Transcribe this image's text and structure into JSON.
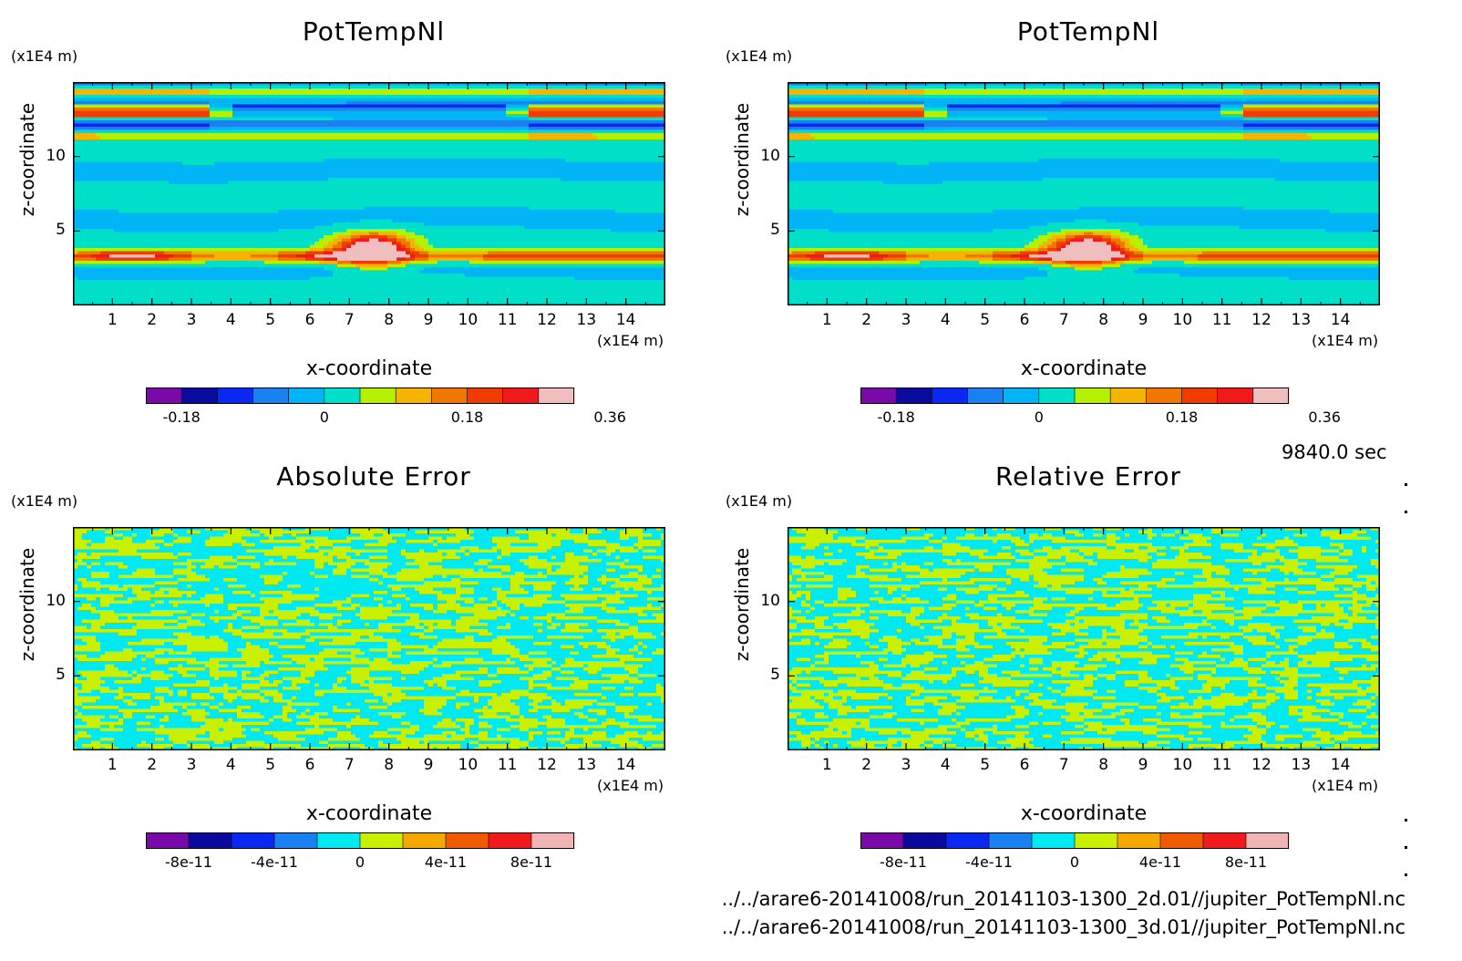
{
  "chart_data": [
    {
      "type": "heatmap",
      "title": "PotTempNl",
      "xlabel": "x-coordinate",
      "ylabel": "z-coordinate",
      "x_unit": "(x1E4 m)",
      "y_unit": "(x1E4 m)",
      "xlim": [
        0,
        15
      ],
      "ylim": [
        0,
        15
      ],
      "x_ticks": [
        "1",
        "2",
        "3",
        "4",
        "5",
        "6",
        "7",
        "8",
        "9",
        "10",
        "11",
        "12",
        "13",
        "14"
      ],
      "y_ticks": [
        "5",
        "10"
      ],
      "pattern": "field",
      "colorbar": {
        "colors": [
          "#7a0aa8",
          "#0a0a9c",
          "#0a28f0",
          "#1a82f0",
          "#00b4f5",
          "#00e0c8",
          "#b4f000",
          "#f5b400",
          "#f07800",
          "#f03c00",
          "#f01a1a",
          "#f0bebe"
        ],
        "tick_labels": [
          "-0.18",
          "0",
          "0.18",
          "0.36"
        ]
      }
    },
    {
      "type": "heatmap",
      "title": "PotTempNl",
      "xlabel": "x-coordinate",
      "ylabel": "z-coordinate",
      "x_unit": "(x1E4 m)",
      "y_unit": "(x1E4 m)",
      "xlim": [
        0,
        15
      ],
      "ylim": [
        0,
        15
      ],
      "x_ticks": [
        "1",
        "2",
        "3",
        "4",
        "5",
        "6",
        "7",
        "8",
        "9",
        "10",
        "11",
        "12",
        "13",
        "14"
      ],
      "y_ticks": [
        "5",
        "10"
      ],
      "pattern": "field",
      "colorbar": {
        "colors": [
          "#7a0aa8",
          "#0a0a9c",
          "#0a28f0",
          "#1a82f0",
          "#00b4f5",
          "#00e0c8",
          "#b4f000",
          "#f5b400",
          "#f07800",
          "#f03c00",
          "#f01a1a",
          "#f0bebe"
        ],
        "tick_labels": [
          "-0.18",
          "0",
          "0.18",
          "0.36"
        ]
      }
    },
    {
      "type": "heatmap",
      "title": "Absolute Error",
      "xlabel": "x-coordinate",
      "ylabel": "z-coordinate",
      "x_unit": "(x1E4 m)",
      "y_unit": "(x1E4 m)",
      "xlim": [
        0,
        15
      ],
      "ylim": [
        0,
        15
      ],
      "x_ticks": [
        "1",
        "2",
        "3",
        "4",
        "5",
        "6",
        "7",
        "8",
        "9",
        "10",
        "11",
        "12",
        "13",
        "14"
      ],
      "y_ticks": [
        "5",
        "10"
      ],
      "pattern": "noise",
      "colorbar": {
        "colors": [
          "#7a0aa8",
          "#0a0a9c",
          "#0a28f0",
          "#1a82f0",
          "#00e8f0",
          "#c8f000",
          "#f5a800",
          "#f05a00",
          "#f01a1a",
          "#f0b4b4"
        ],
        "tick_labels": [
          "-8e-11",
          "-4e-11",
          "0",
          "4e-11",
          "8e-11"
        ]
      }
    },
    {
      "type": "heatmap",
      "title": "Relative Error",
      "xlabel": "x-coordinate",
      "ylabel": "z-coordinate",
      "x_unit": "(x1E4 m)",
      "y_unit": "(x1E4 m)",
      "xlim": [
        0,
        15
      ],
      "ylim": [
        0,
        15
      ],
      "x_ticks": [
        "1",
        "2",
        "3",
        "4",
        "5",
        "6",
        "7",
        "8",
        "9",
        "10",
        "11",
        "12",
        "13",
        "14"
      ],
      "y_ticks": [
        "5",
        "10"
      ],
      "pattern": "noise",
      "colorbar": {
        "colors": [
          "#7a0aa8",
          "#0a0a9c",
          "#0a28f0",
          "#1a82f0",
          "#00e8f0",
          "#c8f000",
          "#f5a800",
          "#f05a00",
          "#f01a1a",
          "#f0b4b4"
        ],
        "tick_labels": [
          "-8e-11",
          "-4e-11",
          "0",
          "4e-11",
          "8e-11"
        ]
      }
    }
  ],
  "time_label": "9840.0 sec",
  "files": [
    "../../arare6-20141008/run_20141103-1300_2d.01//jupiter_PotTempNl.nc",
    "../../arare6-20141008/run_20141103-1300_3d.01//jupiter_PotTempNl.nc"
  ]
}
